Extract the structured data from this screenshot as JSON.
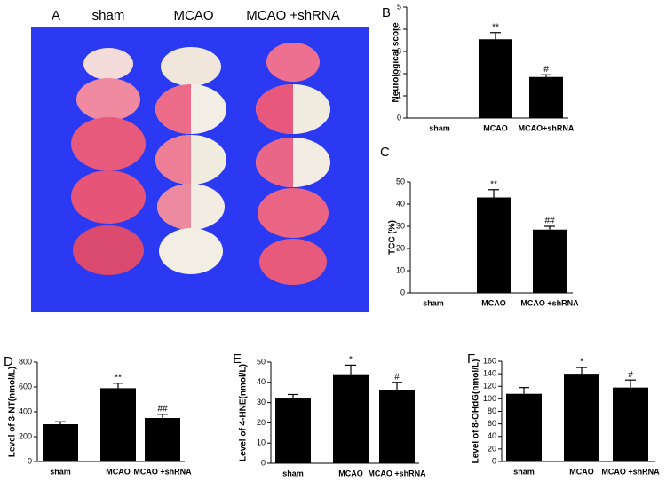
{
  "photo_panel": {
    "panel": "A",
    "columns": [
      "sham",
      "MCAO",
      "MCAO +shRNA"
    ]
  },
  "chart_data": [
    {
      "type": "bar",
      "panel": "B",
      "y_label": "Neurological score",
      "color": "#000000",
      "categories": [
        "sham",
        "MCAO",
        "MCAO+shRNA"
      ],
      "values": [
        0,
        3.55,
        1.85
      ],
      "errors": [
        0,
        0.3,
        0.1
      ],
      "significance": [
        null,
        "**",
        "#"
      ],
      "ylim": [
        0,
        5
      ],
      "yticks": [
        0,
        1,
        2,
        3,
        4,
        5
      ]
    },
    {
      "type": "bar",
      "panel": "C",
      "y_label": "TCC (%)",
      "color": "#000000",
      "categories": [
        "sham",
        "MCAO",
        "MCAO +shRNA"
      ],
      "values": [
        0,
        43,
        28.5
      ],
      "errors": [
        0,
        3.5,
        1.5
      ],
      "significance": [
        null,
        "**",
        "##"
      ],
      "ylim": [
        0,
        50
      ],
      "yticks": [
        0,
        10,
        20,
        30,
        40,
        50
      ]
    },
    {
      "type": "bar",
      "panel": "D",
      "y_label": "Level of 3-NT(nmol/L)",
      "color": "#000000",
      "categories": [
        "sham",
        "MCAO",
        "MCAO +shRNA"
      ],
      "values": [
        300,
        590,
        350
      ],
      "errors": [
        20,
        40,
        30
      ],
      "significance": [
        null,
        "**",
        "##"
      ],
      "ylim": [
        0,
        800
      ],
      "yticks": [
        0,
        200,
        400,
        600,
        800
      ]
    },
    {
      "type": "bar",
      "panel": "E",
      "y_label": "Level of 4-HNE(nmol/L)",
      "color": "#000000",
      "categories": [
        "sham",
        "MCAO",
        "MCAO +shRNA"
      ],
      "values": [
        32,
        44,
        36
      ],
      "errors": [
        2,
        4.5,
        4
      ],
      "significance": [
        null,
        "*",
        "#"
      ],
      "ylim": [
        0,
        50
      ],
      "yticks": [
        0,
        10,
        20,
        30,
        40,
        50
      ]
    },
    {
      "type": "bar",
      "panel": "F",
      "y_label": "Level of 8-OHdG(nmol/L)",
      "color": "#000000",
      "categories": [
        "sham",
        "MCAO",
        "MCAO +shRNA"
      ],
      "values": [
        108,
        140,
        118
      ],
      "errors": [
        10,
        10,
        12
      ],
      "significance": [
        null,
        "*",
        "#"
      ],
      "ylim": [
        0,
        160
      ],
      "yticks": [
        0,
        20,
        40,
        60,
        80,
        100,
        120,
        140,
        160
      ]
    }
  ]
}
